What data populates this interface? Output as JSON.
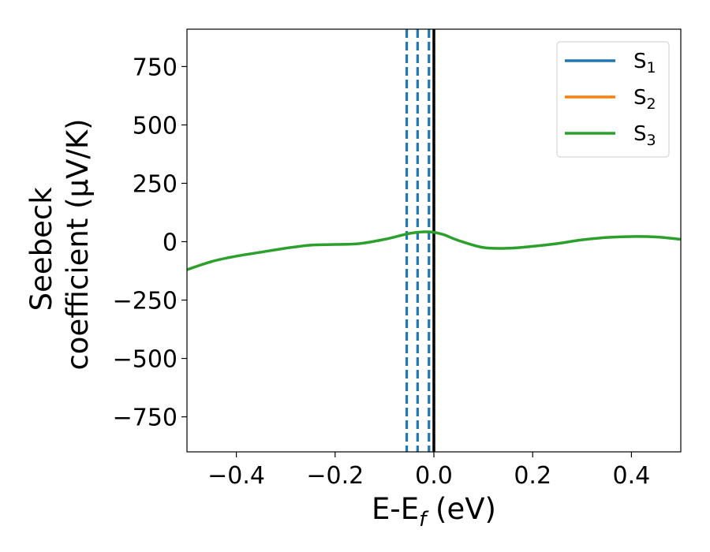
{
  "chart_data": {
    "type": "line",
    "xlabel": {
      "main": "E-E",
      "sub": "f",
      "tail": " (eV)"
    },
    "ylabel": [
      "Seebeck",
      "coefficient  (μV/K)"
    ],
    "xlim": [
      -0.5,
      0.5
    ],
    "ylim": [
      -900,
      910
    ],
    "xticks": [
      -0.4,
      -0.2,
      0.0,
      0.2,
      0.4
    ],
    "xtick_labels": [
      "−0.4",
      "−0.2",
      "0.0",
      "0.2",
      "0.4"
    ],
    "yticks": [
      750,
      500,
      250,
      0,
      -250,
      -500,
      -750
    ],
    "ytick_labels": [
      "750",
      "500",
      "250",
      "0",
      "−250",
      "−500",
      "−750"
    ],
    "legend_position": "top-right",
    "series": [
      {
        "name": "S",
        "sub": "1",
        "color": "#1f77b4",
        "x": [],
        "y": []
      },
      {
        "name": "S",
        "sub": "2",
        "color": "#ff7f0e",
        "x": [],
        "y": []
      },
      {
        "name": "S",
        "sub": "3",
        "color": "#2ca02c",
        "x": [
          -0.5,
          -0.45,
          -0.4,
          -0.35,
          -0.3,
          -0.25,
          -0.2,
          -0.15,
          -0.1,
          -0.05,
          -0.02,
          0.0,
          0.02,
          0.05,
          0.1,
          0.15,
          0.2,
          0.25,
          0.3,
          0.35,
          0.4,
          0.45,
          0.5
        ],
        "y": [
          -120,
          -85,
          -62,
          -45,
          -28,
          -15,
          -12,
          -8,
          10,
          35,
          42,
          40,
          30,
          5,
          -25,
          -28,
          -20,
          -8,
          8,
          18,
          22,
          20,
          10
        ]
      }
    ],
    "vlines": [
      {
        "x": -0.055,
        "color": "#1f77b4",
        "style": "dashed"
      },
      {
        "x": -0.033,
        "color": "#1f77b4",
        "style": "dashed"
      },
      {
        "x": -0.01,
        "color": "#1f77b4",
        "style": "dashed"
      },
      {
        "x": 0.0,
        "color": "#000000",
        "style": "solid"
      }
    ]
  }
}
